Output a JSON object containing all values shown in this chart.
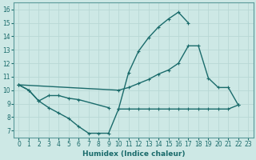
{
  "bg_color": "#cde8e5",
  "grid_color": "#b8d8d5",
  "line_color": "#1a6b6b",
  "line_width": 1.0,
  "marker": "+",
  "marker_size": 3.5,
  "xlabel": "Humidex (Indice chaleur)",
  "xlabel_fontsize": 6.5,
  "tick_fontsize": 5.5,
  "xlim": [
    -0.5,
    23.5
  ],
  "ylim": [
    6.5,
    16.5
  ],
  "xticks": [
    0,
    1,
    2,
    3,
    4,
    5,
    6,
    7,
    8,
    9,
    10,
    11,
    12,
    13,
    14,
    15,
    16,
    17,
    18,
    19,
    20,
    21,
    22,
    23
  ],
  "yticks": [
    7,
    8,
    9,
    10,
    11,
    12,
    13,
    14,
    15,
    16
  ],
  "lines": [
    {
      "x": [
        0,
        1,
        2,
        3,
        4,
        5,
        6,
        7,
        8,
        9,
        10,
        11,
        12,
        13,
        14,
        15,
        16,
        17
      ],
      "y": [
        10.4,
        10.0,
        9.2,
        8.7,
        8.3,
        7.9,
        7.3,
        6.8,
        6.8,
        6.8,
        8.6,
        11.3,
        12.9,
        13.9,
        14.7,
        15.3,
        15.8,
        15.0
      ]
    },
    {
      "x": [
        0,
        1,
        2,
        3,
        4,
        5,
        6,
        9
      ],
      "y": [
        10.4,
        10.0,
        9.2,
        9.6,
        9.6,
        9.4,
        9.3,
        8.7
      ]
    },
    {
      "x": [
        0,
        10,
        11,
        12,
        13,
        14,
        15,
        16,
        17,
        18,
        19,
        20,
        21,
        22
      ],
      "y": [
        10.4,
        10.0,
        10.2,
        10.5,
        10.8,
        11.2,
        11.5,
        12.0,
        13.3,
        13.3,
        10.9,
        10.2,
        10.2,
        8.9
      ]
    },
    {
      "x": [
        10,
        11,
        12,
        13,
        14,
        15,
        16,
        17,
        18,
        19,
        20,
        21,
        22
      ],
      "y": [
        8.6,
        8.6,
        8.6,
        8.6,
        8.6,
        8.6,
        8.6,
        8.6,
        8.6,
        8.6,
        8.6,
        8.6,
        8.9
      ]
    }
  ]
}
